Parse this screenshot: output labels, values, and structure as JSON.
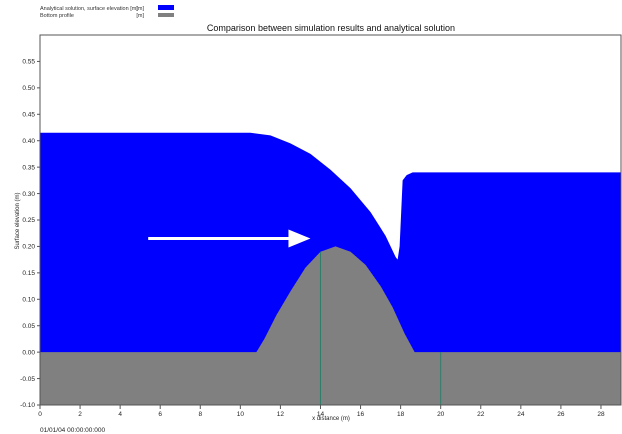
{
  "chart_data": {
    "type": "area",
    "title": "Comparison between simulation results and analytical solution",
    "xlabel": "x distance (m)",
    "ylabel": "Surface elevation (m)",
    "xlim": [
      0,
      29
    ],
    "ylim": [
      -0.1,
      0.6
    ],
    "x_ticks": [
      0,
      2,
      4,
      6,
      8,
      10,
      12,
      14,
      16,
      18,
      20,
      22,
      24,
      26,
      28
    ],
    "y_ticks": [
      -0.1,
      -0.05,
      0.0,
      0.05,
      0.1,
      0.15,
      0.2,
      0.25,
      0.3,
      0.35,
      0.4,
      0.45,
      0.5,
      0.55
    ],
    "grid": false,
    "legend_position": "top-left",
    "timestamp": "01/01/04 00:00:00:000",
    "colors": {
      "surface": "#0000ff",
      "bottom": "#808080",
      "arrow": "#ffffff",
      "bottom_lines": "#2e7d6a"
    },
    "series": [
      {
        "name": "Analytical solution, surface elevation [m]",
        "x": [
          0,
          10.5,
          11.5,
          12.5,
          13.5,
          14.5,
          15.5,
          16.5,
          17.25,
          17.75,
          17.85,
          17.95,
          18.1,
          18.3,
          18.6,
          29
        ],
        "values": [
          0.415,
          0.415,
          0.41,
          0.395,
          0.375,
          0.345,
          0.31,
          0.265,
          0.22,
          0.18,
          0.175,
          0.2,
          0.325,
          0.335,
          0.34,
          0.34
        ]
      },
      {
        "name": "Bottom profile",
        "unit_label": "[m]",
        "x": [
          0,
          10.8,
          11.2,
          11.8,
          12.5,
          13.25,
          14.0,
          14.75,
          15.5,
          16.25,
          17.0,
          17.6,
          18.2,
          18.7,
          29
        ],
        "values": [
          0.0,
          0.0,
          0.025,
          0.07,
          0.115,
          0.16,
          0.19,
          0.2,
          0.19,
          0.165,
          0.125,
          0.085,
          0.035,
          0.0,
          0.0
        ]
      }
    ],
    "annotations": [
      {
        "type": "arrow",
        "x_start": 5.4,
        "x_end": 13.5,
        "y": 0.215
      }
    ],
    "bottom_markers_x": [
      14.0,
      20.0
    ]
  }
}
